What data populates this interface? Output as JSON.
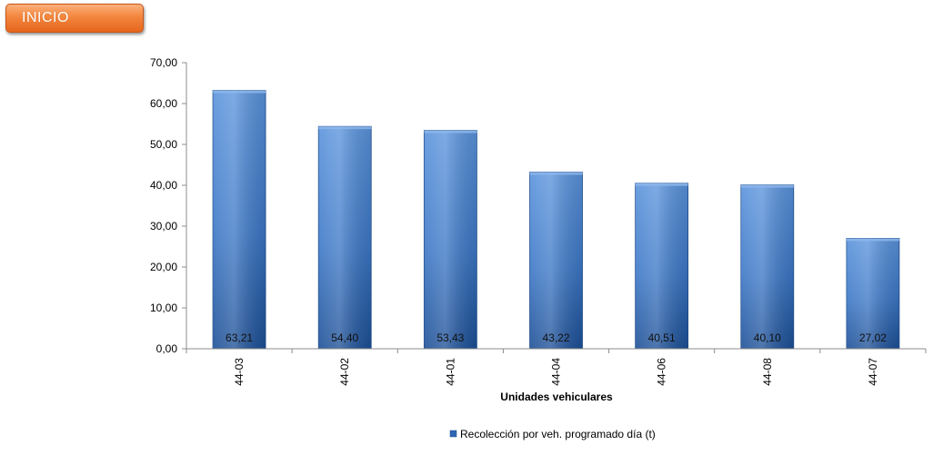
{
  "nav": {
    "inicio_label": "INICIO"
  },
  "chart_data": {
    "type": "bar",
    "categories": [
      "44-03",
      "44-02",
      "44-01",
      "44-04",
      "44-06",
      "44-08",
      "44-07"
    ],
    "series": [
      {
        "name": "Recolección por veh. programado día (t)",
        "values": [
          63.21,
          54.4,
          53.43,
          43.22,
          40.51,
          40.1,
          27.02
        ]
      }
    ],
    "data_labels": [
      "63,21",
      "54,40",
      "53,43",
      "43,22",
      "40,51",
      "40,10",
      "27,02"
    ],
    "title": "",
    "xlabel": "Unidades vehiculares",
    "ylabel": "",
    "ylim": [
      0,
      70
    ],
    "yticks": [
      0,
      10,
      20,
      30,
      40,
      50,
      60,
      70
    ],
    "ytick_labels": [
      "0,00",
      "10,00",
      "20,00",
      "30,00",
      "40,00",
      "50,00",
      "60,00",
      "70,00"
    ],
    "legend_position": "bottom",
    "grid": false,
    "colors": {
      "bar_top": "#5a93dc",
      "bar_bottom": "#1c4f96",
      "bar_stroke": "#1f4d8c",
      "axis": "#8c8c8c"
    }
  }
}
